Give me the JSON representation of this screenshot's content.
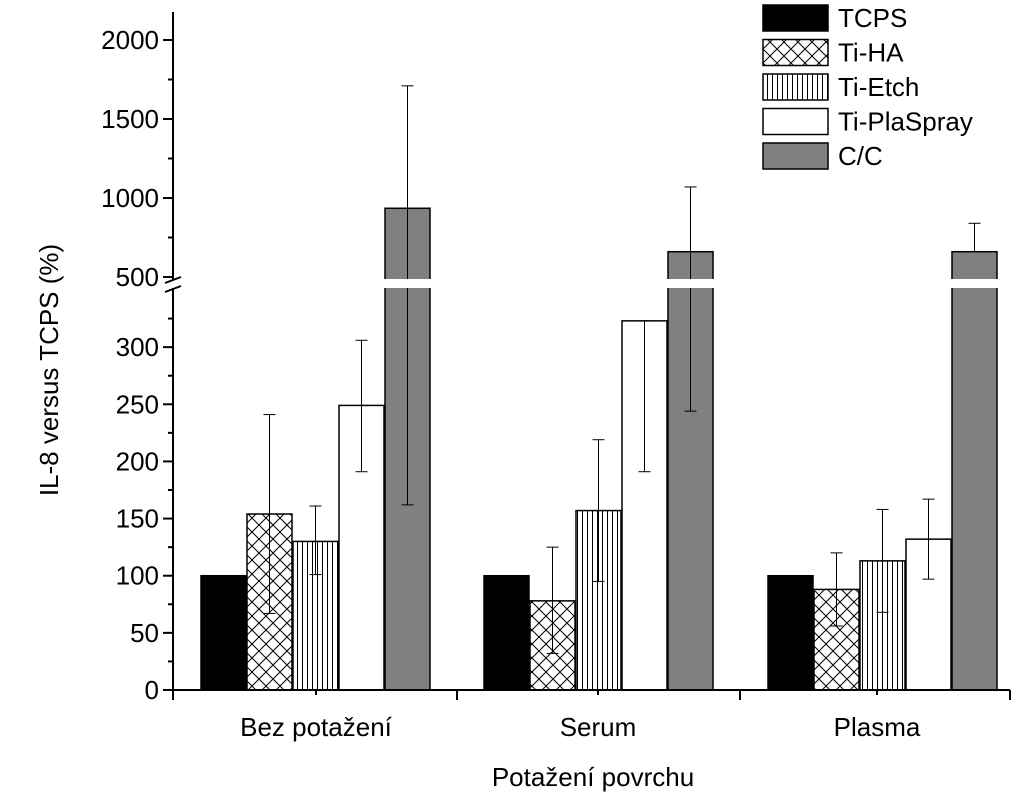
{
  "chart_data": {
    "type": "bar",
    "xlabel": "Potažení povrchu",
    "ylabel": "IL-8 versus TCPS (%)",
    "categories": [
      "Bez potažení",
      "Serum",
      "Plasma"
    ],
    "series": [
      {
        "name": "TCPS",
        "fill": "solid",
        "color": "#000000",
        "values": [
          100,
          100,
          100
        ],
        "errors": [
          null,
          null,
          null
        ]
      },
      {
        "name": "Ti-HA",
        "fill": "crosshatch",
        "color": "#ffffff",
        "values": [
          154,
          78,
          88
        ],
        "errors": [
          [
            67,
            241
          ],
          [
            32,
            125
          ],
          [
            56,
            120
          ]
        ]
      },
      {
        "name": "Ti-Etch",
        "fill": "vertical-lines",
        "color": "#ffffff",
        "values": [
          130,
          157,
          113
        ],
        "errors": [
          [
            101,
            161
          ],
          [
            95,
            219
          ],
          [
            68,
            158
          ]
        ]
      },
      {
        "name": "Ti-PlaSpray",
        "fill": "hollow",
        "color": "#ffffff",
        "values": [
          249,
          323,
          132
        ],
        "errors": [
          [
            191,
            306
          ],
          [
            191,
            323
          ],
          [
            97,
            167
          ]
        ]
      },
      {
        "name": "C/C",
        "fill": "solid",
        "color": "#808080",
        "values": [
          935,
          660,
          660
        ],
        "errors": [
          [
            162,
            1710
          ],
          [
            244,
            1070
          ],
          [
            null,
            840
          ]
        ]
      }
    ],
    "y_axis": {
      "broken": true,
      "lower_segment": {
        "range": [
          0,
          350
        ],
        "ticks": [
          0,
          50,
          100,
          150,
          200,
          250,
          300
        ]
      },
      "upper_segment": {
        "range": [
          500,
          2000
        ],
        "ticks": [
          500,
          1000,
          1500,
          2000
        ]
      }
    },
    "legend": {
      "position": "top-right"
    },
    "grid": false
  }
}
